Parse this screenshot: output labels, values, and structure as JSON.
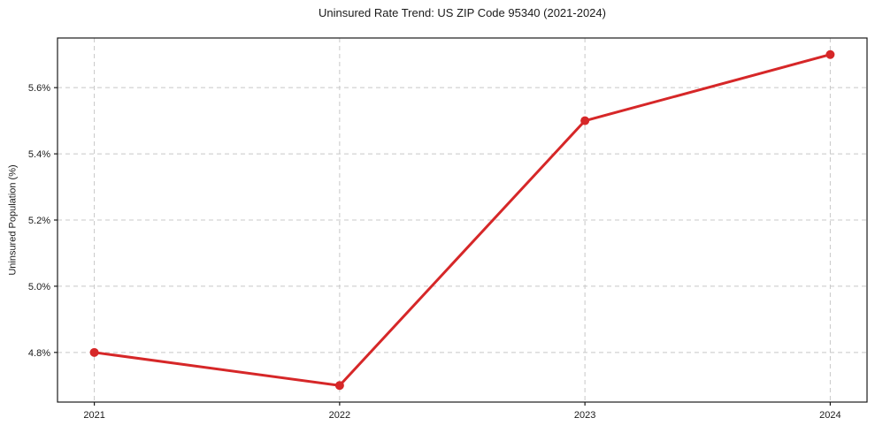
{
  "chart_data": {
    "type": "line",
    "title": "Uninsured Rate Trend: US ZIP Code 95340 (2021-2024)",
    "xlabel": "",
    "ylabel": "Uninsured Population (%)",
    "x": [
      2021,
      2022,
      2023,
      2024
    ],
    "values": [
      4.8,
      4.7,
      5.5,
      5.7
    ],
    "categories": [
      "2021",
      "2022",
      "2023",
      "2024"
    ],
    "xtick_labels": [
      "2021",
      "2022",
      "2023",
      "2024"
    ],
    "xticks": [
      2021,
      2022,
      2023,
      2024
    ],
    "ytick_labels": [
      "4.8%",
      "5.0%",
      "5.2%",
      "5.4%",
      "5.6%"
    ],
    "yticks": [
      4.8,
      5.0,
      5.2,
      5.4,
      5.6
    ],
    "xlim": [
      2020.85,
      2024.15
    ],
    "ylim": [
      4.65,
      5.75
    ],
    "grid": true,
    "legend": "none",
    "line_color": "#d62728",
    "marker": "circle",
    "grid_color": "#c8c8c8",
    "spine_color": "#1a1a1a",
    "text_color": "#1a1a1a",
    "background_color": "#ffffff"
  }
}
